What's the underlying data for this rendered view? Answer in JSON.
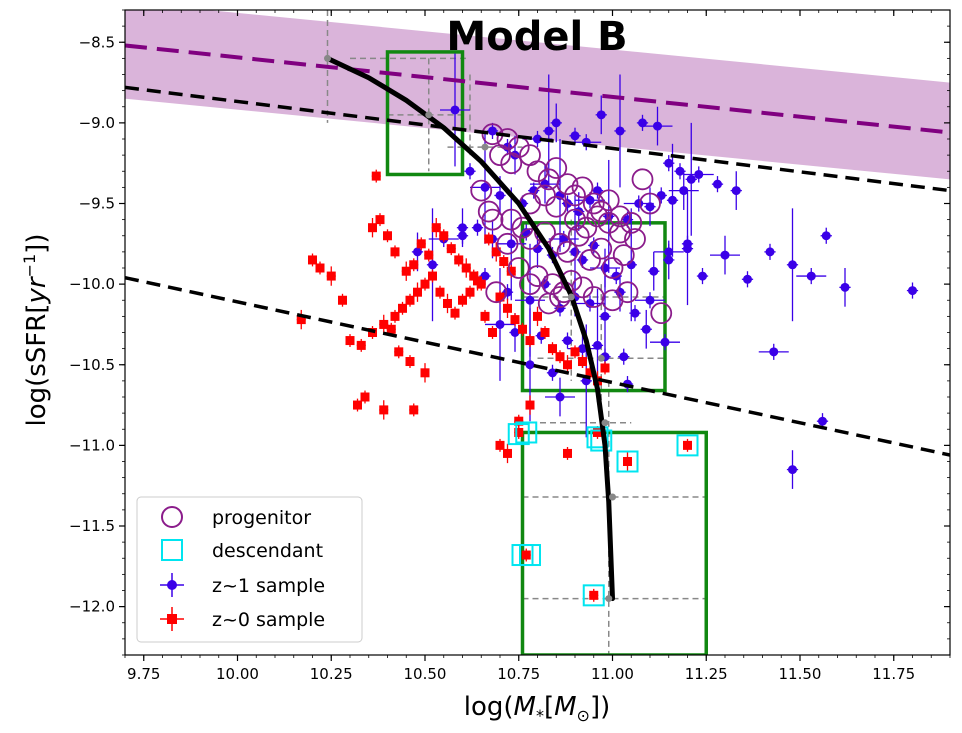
{
  "chart_data": {
    "type": "scatter",
    "title": "Model B",
    "xlabel_prefix": "log(",
    "xlabel_sym": "M",
    "xlabel_sub": "*",
    "xlabel_unit_open": "[",
    "xlabel_unit_sym": "M",
    "xlabel_unit_sub": "⊙",
    "xlabel_close": "])",
    "ylabel_prefix": "log(sSFR[",
    "ylabel_unit": "yr",
    "ylabel_sup": "−1",
    "ylabel_close": "])",
    "xlim": [
      9.7,
      11.9
    ],
    "ylim": [
      -12.3,
      -8.3
    ],
    "xticks": [
      9.75,
      10.0,
      10.25,
      10.5,
      10.75,
      11.0,
      11.25,
      11.5,
      11.75
    ],
    "xtick_labels": [
      "9.75",
      "10.00",
      "10.25",
      "10.50",
      "10.75",
      "11.00",
      "11.25",
      "11.50",
      "11.75"
    ],
    "yticks": [
      -8.5,
      -9.0,
      -9.5,
      -10.0,
      -10.5,
      -11.0,
      -11.5,
      -12.0
    ],
    "ytick_labels": [
      "−8.5",
      "−9.0",
      "−9.5",
      "−10.0",
      "−10.5",
      "−11.0",
      "−11.5",
      "−12.0"
    ],
    "colors": {
      "z1": "#3a00e8",
      "z0": "#ff0000",
      "progenitor": "#8b1c8b",
      "descendant": "#00e5f0",
      "track": "#000000",
      "purple_line": "#800080",
      "band": "#d8b0d8",
      "box": "#118811",
      "dashed_black": "#000000",
      "grey": "#888888"
    },
    "legend": {
      "position": "lower-left",
      "entries": [
        "progenitor",
        "descendant",
        "z~1 sample",
        "z~0 sample"
      ]
    },
    "band": {
      "x": [
        9.7,
        11.9
      ],
      "upper": [
        -8.25,
        -8.75
      ],
      "lower": [
        -8.85,
        -9.35
      ]
    },
    "purple_line": {
      "x": [
        9.7,
        11.9
      ],
      "y": [
        -8.52,
        -9.06
      ]
    },
    "dashed_lines": [
      {
        "x": [
          9.7,
          11.9
        ],
        "y": [
          -8.78,
          -9.42
        ]
      },
      {
        "x": [
          9.7,
          11.9
        ],
        "y": [
          -9.96,
          -11.06
        ]
      }
    ],
    "track": {
      "x": [
        10.24,
        10.35,
        10.45,
        10.55,
        10.65,
        10.75,
        10.83,
        10.89,
        10.93,
        10.96,
        10.98,
        10.99,
        10.995,
        11.0
      ],
      "y": [
        -8.6,
        -8.72,
        -8.86,
        -9.03,
        -9.24,
        -9.5,
        -9.78,
        -10.07,
        -10.35,
        -10.65,
        -11.0,
        -11.35,
        -11.65,
        -11.95
      ]
    },
    "track_markers": {
      "x": [
        10.24,
        10.51,
        10.66,
        10.89,
        10.97,
        10.98,
        11.0,
        10.99
      ],
      "y": [
        -8.6,
        -8.95,
        -9.15,
        -10.08,
        -10.46,
        -10.86,
        -11.32,
        -11.95
      ]
    },
    "boxes": [
      {
        "x": [
          10.4,
          10.6
        ],
        "y": [
          -9.32,
          -8.56
        ]
      },
      {
        "x": [
          10.76,
          11.14
        ],
        "y": [
          -10.66,
          -9.62
        ]
      },
      {
        "x": [
          10.76,
          11.25
        ],
        "y": [
          -12.3,
          -10.92
        ]
      }
    ],
    "z1_sample": {
      "x": [
        10.58,
        10.68,
        10.72,
        10.74,
        10.8,
        10.83,
        10.85,
        10.9,
        10.93,
        10.97,
        11.02,
        11.08,
        11.12,
        11.15,
        11.18,
        11.21,
        11.23,
        11.28,
        11.33,
        10.62,
        10.66,
        10.7,
        10.76,
        10.79,
        10.82,
        10.86,
        10.88,
        10.91,
        10.94,
        10.96,
        10.99,
        11.04,
        11.07,
        11.1,
        11.13,
        11.16,
        11.19,
        10.6,
        10.64,
        10.68,
        10.73,
        10.77,
        10.8,
        10.84,
        10.87,
        10.9,
        10.92,
        10.95,
        10.98,
        11.01,
        11.05,
        11.11,
        11.15,
        11.2,
        10.48,
        10.52,
        10.55,
        10.6,
        10.66,
        10.72,
        10.78,
        10.82,
        10.86,
        10.9,
        10.94,
        10.98,
        11.02,
        11.06,
        11.1,
        11.15,
        11.2,
        11.24,
        11.3,
        11.36,
        11.42,
        11.48,
        11.53,
        11.57,
        11.62,
        11.8,
        10.7,
        10.74,
        10.81,
        10.88,
        10.92,
        10.96,
        11.03,
        11.09,
        11.14,
        10.84,
        10.93,
        11.04,
        11.43,
        11.48,
        11.56,
        10.78,
        10.86,
        10.98
      ],
      "y": [
        -8.92,
        -9.05,
        -9.15,
        -9.2,
        -9.1,
        -9.05,
        -9.0,
        -9.08,
        -9.12,
        -8.95,
        -9.05,
        -9.0,
        -9.02,
        -9.25,
        -9.3,
        -9.35,
        -9.32,
        -9.38,
        -9.42,
        -9.3,
        -9.4,
        -9.45,
        -9.5,
        -9.42,
        -9.38,
        -9.45,
        -9.5,
        -9.55,
        -9.48,
        -9.42,
        -9.58,
        -9.6,
        -9.5,
        -9.52,
        -9.45,
        -9.48,
        -9.42,
        -9.7,
        -9.65,
        -9.72,
        -9.75,
        -9.68,
        -9.78,
        -9.82,
        -9.72,
        -9.8,
        -9.85,
        -9.76,
        -9.9,
        -9.95,
        -9.88,
        -9.92,
        -9.8,
        -9.75,
        -9.8,
        -9.88,
        -9.72,
        -9.65,
        -9.95,
        -10.05,
        -10.1,
        -10.0,
        -10.15,
        -10.08,
        -10.12,
        -10.2,
        -10.05,
        -10.18,
        -10.1,
        -9.85,
        -9.78,
        -9.95,
        -9.82,
        -9.97,
        -9.8,
        -9.88,
        -9.95,
        -9.7,
        -10.02,
        -10.04,
        -10.25,
        -10.3,
        -10.32,
        -10.35,
        -10.4,
        -10.38,
        -10.45,
        -10.28,
        -10.36,
        -10.55,
        -10.6,
        -10.62,
        -10.42,
        -11.15,
        -10.85,
        -10.5,
        -10.7,
        -10.45
      ]
    },
    "z0_sample": {
      "x": [
        10.17,
        10.3,
        10.33,
        10.36,
        10.39,
        10.42,
        10.44,
        10.46,
        10.48,
        10.5,
        10.52,
        10.54,
        10.56,
        10.58,
        10.6,
        10.62,
        10.64,
        10.66,
        10.68,
        10.7,
        10.72,
        10.74,
        10.76,
        10.78,
        10.8,
        10.82,
        10.84,
        10.86,
        10.88,
        10.9,
        10.92,
        10.94,
        10.96,
        10.98,
        10.2,
        10.22,
        10.25,
        10.38,
        10.4,
        10.42,
        10.45,
        10.47,
        10.49,
        10.51,
        10.53,
        10.55,
        10.57,
        10.59,
        10.61,
        10.63,
        10.65,
        10.67,
        10.69,
        10.71,
        10.73,
        10.37,
        10.36,
        10.41,
        10.43,
        10.46,
        10.5,
        10.34,
        10.32,
        10.28,
        10.39,
        10.47,
        10.7,
        10.75,
        10.78,
        10.88,
        10.96,
        10.95,
        11.04,
        11.2,
        10.77,
        10.75,
        10.72
      ],
      "y": [
        -10.22,
        -10.35,
        -10.38,
        -10.3,
        -10.25,
        -10.2,
        -10.15,
        -10.1,
        -10.05,
        -10.0,
        -9.95,
        -10.05,
        -10.12,
        -10.18,
        -10.1,
        -10.05,
        -9.98,
        -10.2,
        -10.3,
        -10.08,
        -10.15,
        -10.22,
        -10.28,
        -10.35,
        -10.2,
        -10.3,
        -10.4,
        -10.45,
        -10.5,
        -10.42,
        -10.48,
        -10.55,
        -10.6,
        -10.52,
        -9.85,
        -9.9,
        -9.95,
        -9.6,
        -9.7,
        -9.8,
        -9.92,
        -9.88,
        -9.75,
        -9.82,
        -9.65,
        -9.7,
        -9.78,
        -9.85,
        -9.9,
        -9.95,
        -10.0,
        -9.72,
        -9.8,
        -9.86,
        -9.92,
        -9.33,
        -9.65,
        -10.28,
        -10.42,
        -10.48,
        -10.55,
        -10.7,
        -10.75,
        -10.1,
        -10.78,
        -10.78,
        -11.0,
        -10.85,
        -10.75,
        -11.05,
        -10.92,
        -11.93,
        -11.1,
        -11.0,
        -11.68,
        -10.92,
        -11.05
      ]
    },
    "progenitors": {
      "x": [
        10.68,
        10.72,
        10.7,
        10.73,
        10.75,
        10.78,
        10.8,
        10.83,
        10.85,
        10.88,
        10.9,
        10.92,
        10.95,
        10.97,
        10.99,
        11.02,
        11.05,
        11.08,
        11.1,
        10.76,
        10.78,
        10.82,
        10.86,
        10.88,
        10.91,
        10.94,
        10.97,
        11.0,
        11.03,
        11.06,
        10.65,
        10.67,
        10.73,
        10.78,
        10.82,
        10.85,
        10.9,
        10.93,
        10.96,
        10.99,
        11.02,
        10.68,
        10.72,
        10.75,
        10.8,
        10.84,
        10.87,
        10.89,
        10.92,
        10.95,
        11.0,
        11.04,
        10.69,
        10.78,
        10.83,
        10.86,
        11.13
      ],
      "y": [
        -9.07,
        -9.1,
        -9.2,
        -9.25,
        -9.15,
        -9.2,
        -9.3,
        -9.35,
        -9.28,
        -9.38,
        -9.45,
        -9.4,
        -9.5,
        -9.55,
        -9.48,
        -9.58,
        -9.62,
        -9.35,
        -9.5,
        -9.65,
        -9.72,
        -9.68,
        -9.75,
        -9.8,
        -9.7,
        -9.85,
        -9.78,
        -9.9,
        -9.82,
        -9.72,
        -9.42,
        -9.55,
        -9.6,
        -9.5,
        -9.45,
        -9.52,
        -9.6,
        -9.65,
        -9.58,
        -9.62,
        -9.68,
        -9.6,
        -9.75,
        -9.9,
        -9.95,
        -10.0,
        -10.05,
        -9.98,
        -10.02,
        -10.08,
        -10.1,
        -10.05,
        -10.05,
        -10.0,
        -10.12,
        -10.08,
        -10.18
      ]
    },
    "descendants": {
      "x": [
        10.75,
        10.78,
        10.76,
        10.96,
        10.97,
        11.04,
        11.2,
        10.95,
        10.77
      ],
      "y": [
        -10.93,
        -11.68,
        -11.68,
        -10.95,
        -10.97,
        -11.1,
        -11.0,
        -11.93,
        -10.92
      ]
    },
    "grey_markers": {
      "x": [
        10.24,
        10.5,
        10.66
      ],
      "y": [
        -8.6,
        -8.95,
        -9.15
      ]
    }
  }
}
